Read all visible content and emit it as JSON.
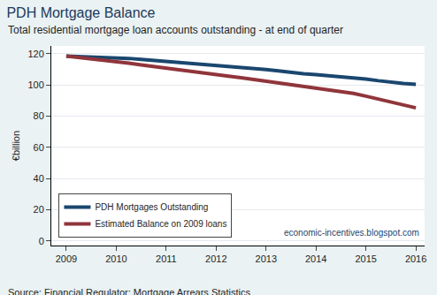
{
  "chart_data": {
    "type": "line",
    "title": "PDH Mortgage Balance",
    "subtitle": "Total residential mortgage loan accounts outstanding - at end of quarter",
    "y_label": "€billion",
    "source": "Source: Financial Regulator: Mortgage Arrears Statistics",
    "annotations": [
      {
        "text": "economic-incentives.blogspot.com"
      }
    ],
    "categories": [
      "2009",
      null,
      null,
      null,
      "2010",
      null,
      null,
      null,
      "2011",
      null,
      null,
      null,
      "2012",
      null,
      null,
      null,
      "2013",
      null,
      null,
      null,
      "2014",
      null,
      null,
      null,
      "2015",
      null,
      null,
      null,
      "2016"
    ],
    "series": [
      {
        "name": "PDH Mortgages Outstanding",
        "color": "#1a476f",
        "values": [
          118.5,
          118.3,
          118.1,
          117.8,
          117.5,
          117.0,
          116.3,
          115.7,
          115.1,
          114.5,
          113.8,
          113.2,
          112.6,
          112.0,
          111.3,
          110.6,
          109.9,
          109.0,
          108.0,
          107.2,
          106.6,
          106.0,
          105.3,
          104.7,
          103.8,
          102.7,
          101.7,
          100.9,
          100.3
        ]
      },
      {
        "name": "Estimated Balance on 2009 loans",
        "color": "#90353b",
        "values": [
          118.5,
          117.7,
          116.8,
          116.0,
          115.1,
          114.0,
          112.8,
          111.7,
          110.6,
          109.6,
          108.6,
          107.6,
          106.6,
          105.6,
          104.6,
          103.5,
          102.3,
          101.0,
          99.8,
          98.8,
          97.9,
          96.9,
          95.8,
          94.6,
          92.8,
          90.9,
          89.2,
          87.0,
          85.3
        ]
      }
    ],
    "ylim": [
      -3,
      125
    ],
    "yticks": [
      0,
      20,
      40,
      60,
      80,
      100,
      120
    ],
    "grid": true,
    "legend": "bottom-left"
  }
}
